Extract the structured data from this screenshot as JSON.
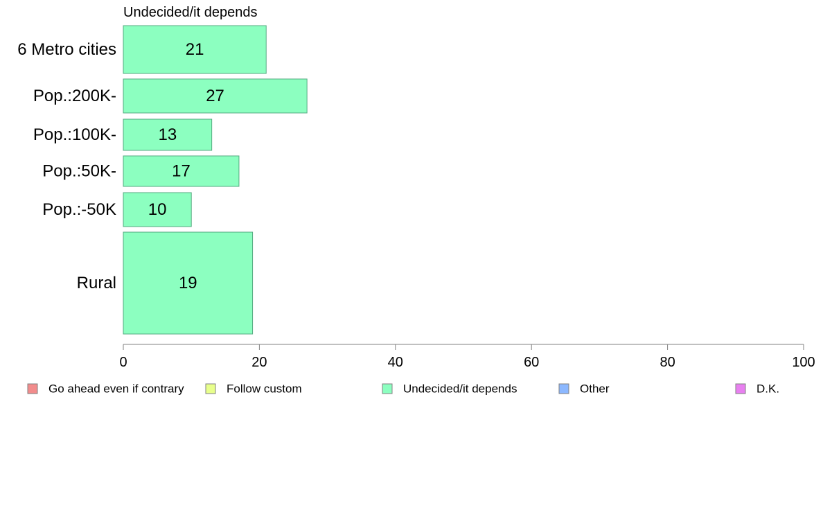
{
  "chart_data": {
    "type": "bar",
    "orientation": "horizontal",
    "title": "Undecided/it depends",
    "categories": [
      "6 Metro cities",
      "Pop.:200K-",
      "Pop.:100K-",
      "Pop.:50K-",
      "Pop.:-50K",
      "Rural"
    ],
    "series": [
      {
        "name": "Undecided/it depends",
        "values": [
          21,
          27,
          13,
          17,
          10,
          19
        ],
        "color": "#8cffc0"
      }
    ],
    "xlim": [
      0,
      100
    ],
    "xticks": [
      "0",
      "20",
      "40",
      "60",
      "80",
      "100"
    ],
    "xtick_values": [
      0,
      20,
      40,
      60,
      80,
      100
    ],
    "bar_border_color": "#55aa80",
    "axis_color": "#808080",
    "grid": false,
    "legend_position": "bottom",
    "legend": [
      {
        "label": "Go ahead even if contrary",
        "color": "#f28c8c"
      },
      {
        "label": "Follow custom",
        "color": "#e8ff8c"
      },
      {
        "label": "Undecided/it depends",
        "color": "#8cffc0"
      },
      {
        "label": "Other",
        "color": "#8cb8ff"
      },
      {
        "label": "D.K.",
        "color": "#e880f0"
      }
    ]
  }
}
